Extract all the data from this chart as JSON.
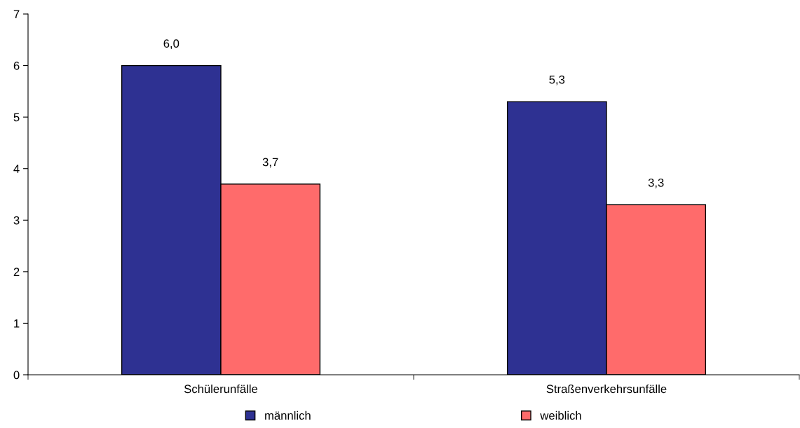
{
  "chart_data": {
    "type": "bar",
    "categories": [
      "Schülerunfälle",
      "Straßenverkehrsunfälle"
    ],
    "series": [
      {
        "name": "männlich",
        "color": "#2e3192",
        "values": [
          6.0,
          5.3
        ],
        "value_labels": [
          "6,0",
          "5,3"
        ]
      },
      {
        "name": "weiblich",
        "color": "#ff6b6b",
        "values": [
          3.7,
          3.3
        ],
        "value_labels": [
          "3,7",
          "3,3"
        ]
      }
    ],
    "ylim": [
      0,
      7
    ],
    "yticks": [
      0,
      1,
      2,
      3,
      4,
      5,
      6,
      7
    ],
    "grid": false,
    "legend": "bottom"
  }
}
